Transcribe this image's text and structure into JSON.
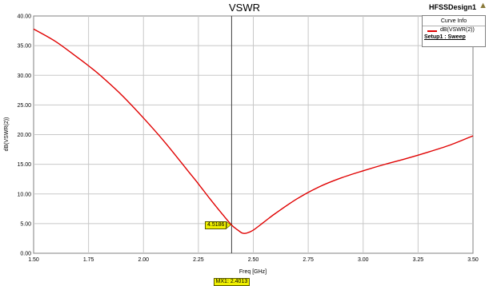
{
  "chart_data": {
    "type": "line",
    "title": "VSWR",
    "xlabel": "Freq [GHz]",
    "ylabel": "dB(VSWR(2))",
    "xlim": [
      1.5,
      3.5
    ],
    "ylim": [
      0,
      40
    ],
    "x_ticks": [
      "1.50",
      "1.75",
      "2.00",
      "2.25",
      "2.50",
      "2.75",
      "3.00",
      "3.25",
      "3.50"
    ],
    "y_ticks": [
      "0.00",
      "5.00",
      "10.00",
      "15.00",
      "20.00",
      "25.00",
      "30.00",
      "35.00",
      "40.00"
    ],
    "grid": true,
    "legend_position": "top-right",
    "series": [
      {
        "name": "dB(VSWR(2))",
        "color": "#e00000",
        "x": [
          1.5,
          1.6,
          1.7,
          1.75,
          1.8,
          1.9,
          2.0,
          2.1,
          2.2,
          2.25,
          2.3,
          2.35,
          2.4,
          2.43,
          2.45,
          2.47,
          2.5,
          2.55,
          2.6,
          2.7,
          2.8,
          2.9,
          3.0,
          3.1,
          3.2,
          3.3,
          3.4,
          3.5
        ],
        "y": [
          37.8,
          35.7,
          33.0,
          31.6,
          30.1,
          26.7,
          22.8,
          18.6,
          14.0,
          11.7,
          9.3,
          7.0,
          4.8,
          3.9,
          3.4,
          3.4,
          3.9,
          5.3,
          6.7,
          9.2,
          11.2,
          12.7,
          13.9,
          15.0,
          16.0,
          17.1,
          18.3,
          19.8
        ]
      }
    ],
    "marker": {
      "x": 2.4013,
      "label": "MX1: 2.4013",
      "value_label": "4.5186"
    }
  },
  "legend": {
    "header": "Curve Info",
    "setup": "Setup1 : Sweep"
  },
  "design": {
    "name": "HFSSDesign1"
  },
  "colors": {
    "grid": "#c8c8c8",
    "axis": "#808080",
    "curve": "#e00000",
    "marker_bg": "#f0f000"
  }
}
